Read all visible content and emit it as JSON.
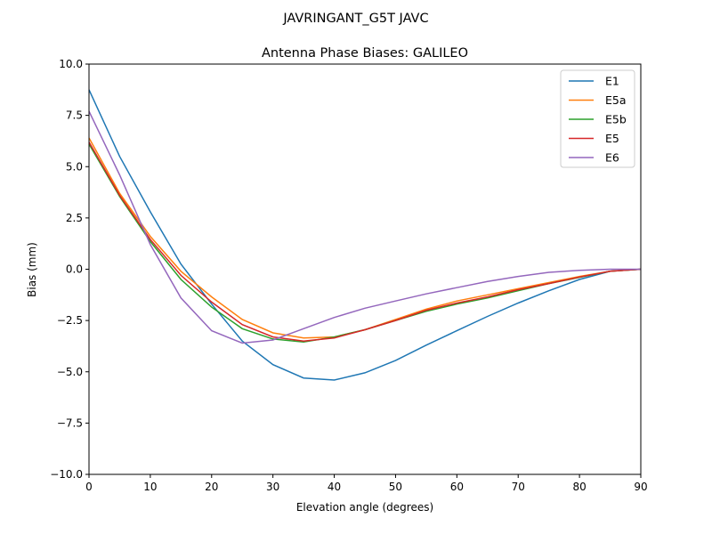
{
  "chart_data": {
    "type": "line",
    "suptitle": "JAVRINGANT_G5T  JAVC",
    "title": "Antenna Phase Biases: GALILEO",
    "xlabel": "Elevation angle (degrees)",
    "ylabel": "Bias (mm)",
    "xlim": [
      0,
      90
    ],
    "ylim": [
      -10,
      10
    ],
    "xticks": [
      0,
      10,
      20,
      30,
      40,
      50,
      60,
      70,
      80,
      90
    ],
    "yticks": [
      "−10.0",
      "−7.5",
      "−5.0",
      "−2.5",
      "0.0",
      "2.5",
      "5.0",
      "7.5",
      "10.0"
    ],
    "ytick_values": [
      -10,
      -7.5,
      -5,
      -2.5,
      0,
      2.5,
      5,
      7.5,
      10
    ],
    "grid": false,
    "legend_placement": "top-right",
    "x": [
      0,
      5,
      10,
      15,
      20,
      25,
      30,
      35,
      40,
      45,
      50,
      55,
      60,
      65,
      70,
      75,
      80,
      85,
      90
    ],
    "series": [
      {
        "name": "E1",
        "color": "#1f77b4",
        "values": [
          8.75,
          5.5,
          2.8,
          0.25,
          -1.7,
          -3.5,
          -4.65,
          -5.3,
          -5.4,
          -5.05,
          -4.45,
          -3.7,
          -3.0,
          -2.3,
          -1.65,
          -1.05,
          -0.5,
          -0.1,
          0
        ]
      },
      {
        "name": "E5a",
        "color": "#ff7f0e",
        "values": [
          6.4,
          3.7,
          1.6,
          -0.1,
          -1.35,
          -2.45,
          -3.1,
          -3.35,
          -3.3,
          -2.95,
          -2.45,
          -1.95,
          -1.55,
          -1.25,
          -0.95,
          -0.65,
          -0.35,
          -0.1,
          0
        ]
      },
      {
        "name": "E5b",
        "color": "#2ca02c",
        "values": [
          6.1,
          3.55,
          1.35,
          -0.5,
          -1.85,
          -2.9,
          -3.4,
          -3.55,
          -3.3,
          -2.95,
          -2.5,
          -2.05,
          -1.7,
          -1.4,
          -1.05,
          -0.7,
          -0.4,
          -0.1,
          0
        ]
      },
      {
        "name": "E5",
        "color": "#d62728",
        "values": [
          6.2,
          3.6,
          1.45,
          -0.3,
          -1.6,
          -2.7,
          -3.3,
          -3.5,
          -3.35,
          -2.95,
          -2.5,
          -2.0,
          -1.65,
          -1.35,
          -1.0,
          -0.7,
          -0.38,
          -0.1,
          0
        ]
      },
      {
        "name": "E6",
        "color": "#9467bd",
        "values": [
          7.7,
          4.6,
          1.2,
          -1.4,
          -3.0,
          -3.6,
          -3.45,
          -2.9,
          -2.35,
          -1.9,
          -1.55,
          -1.2,
          -0.9,
          -0.6,
          -0.35,
          -0.15,
          -0.05,
          0,
          0
        ]
      }
    ]
  }
}
